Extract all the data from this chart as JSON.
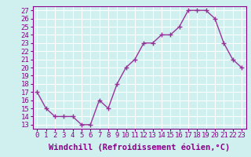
{
  "x": [
    0,
    1,
    2,
    3,
    4,
    5,
    6,
    7,
    8,
    9,
    10,
    11,
    12,
    13,
    14,
    15,
    16,
    17,
    18,
    19,
    20,
    21,
    22,
    23
  ],
  "y": [
    17,
    15,
    14,
    14,
    14,
    13,
    13,
    16,
    15,
    18,
    20,
    21,
    23,
    23,
    24,
    24,
    25,
    27,
    27,
    27,
    26,
    23,
    21,
    20
  ],
  "line_color": "#993399",
  "marker": "+",
  "marker_size": 4,
  "linewidth": 1.0,
  "xlabel": "Windchill (Refroidissement éolien,°C)",
  "xlim": [
    -0.5,
    23.5
  ],
  "ylim": [
    12.5,
    27.5
  ],
  "yticks": [
    13,
    14,
    15,
    16,
    17,
    18,
    19,
    20,
    21,
    22,
    23,
    24,
    25,
    26,
    27
  ],
  "xticks": [
    0,
    1,
    2,
    3,
    4,
    5,
    6,
    7,
    8,
    9,
    10,
    11,
    12,
    13,
    14,
    15,
    16,
    17,
    18,
    19,
    20,
    21,
    22,
    23
  ],
  "bg_color": "#d0f0f0",
  "grid_color": "#ffffff",
  "tick_label_fontsize": 6.5,
  "xlabel_fontsize": 7.5,
  "label_color": "#880088"
}
